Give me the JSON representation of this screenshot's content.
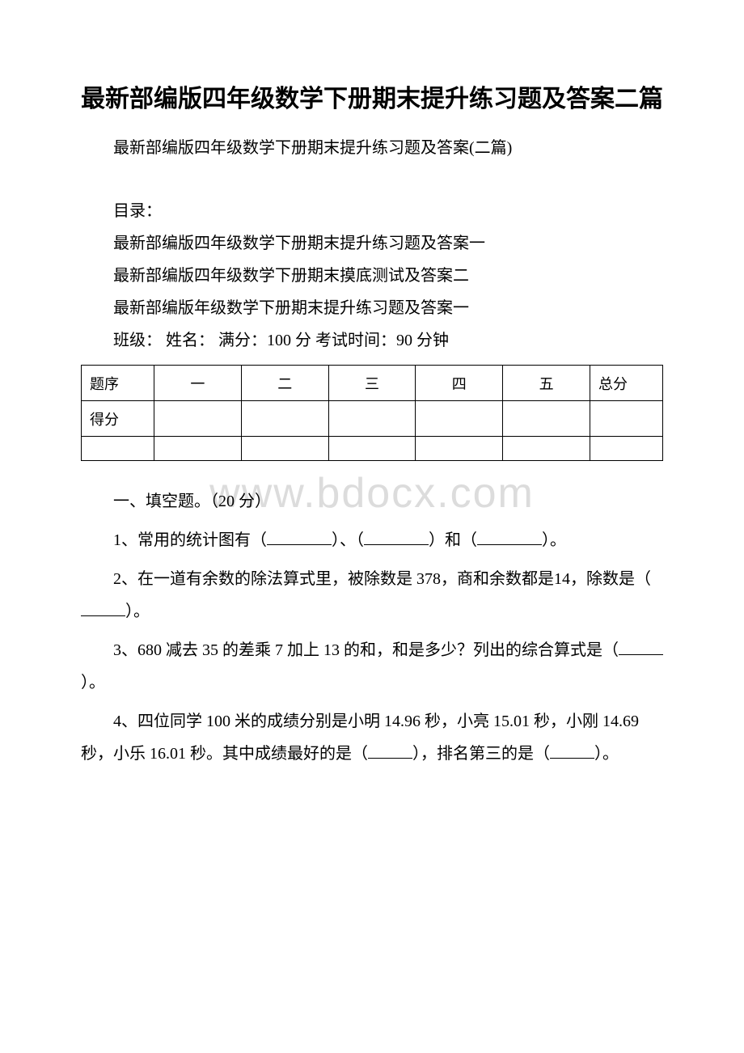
{
  "title": "最新部编版四年级数学下册期末提升练习题及答案二篇",
  "subtitle": "最新部编版四年级数学下册期末提升练习题及答案(二篇)",
  "toc_heading": "目录：",
  "toc": [
    "最新部编版四年级数学下册期末提升练习题及答案一",
    "最新部编版四年级数学下册期末摸底测试及答案二",
    "最新部编版年级数学下册期末提升练习题及答案一"
  ],
  "exam_info": "班级：  姓名：  满分：100 分  考试时间：90 分钟",
  "score_table": {
    "row1_label": "题序",
    "row1_cols": [
      "一",
      "二",
      "三",
      "四",
      "五",
      "总分"
    ],
    "row2_label": "得分",
    "col_widths": [
      "90px",
      "90px",
      "90px",
      "90px",
      "95px",
      "90px",
      "90px"
    ]
  },
  "section1_heading": "一、填空题。（20 分）",
  "questions": {
    "q1_a": "1、常用的统计图有（",
    "q1_b": "）、（",
    "q1_c": "）和（",
    "q1_d": "）。",
    "q2_a": "2、在一道有余数的除法算式里，被除数是 378，商和余数都是14，除数是（",
    "q2_b": "）。",
    "q3_a": "3、680 减去 35 的差乘 7 加上 13 的和，和是多少？列出的综合算式是（",
    "q3_b": "）。",
    "q4_a": "4、四位同学 100 米的成绩分别是小明 14.96 秒，小亮 15.01 秒，小刚 14.69 秒，小乐 16.01 秒。其中成绩最好的是（",
    "q4_b": "），排名第三的是（",
    "q4_c": "）。"
  },
  "watermark": "www.bdocx.com",
  "colors": {
    "text": "#000000",
    "background": "#ffffff",
    "watermark": "#dcdcdc",
    "border": "#000000"
  }
}
